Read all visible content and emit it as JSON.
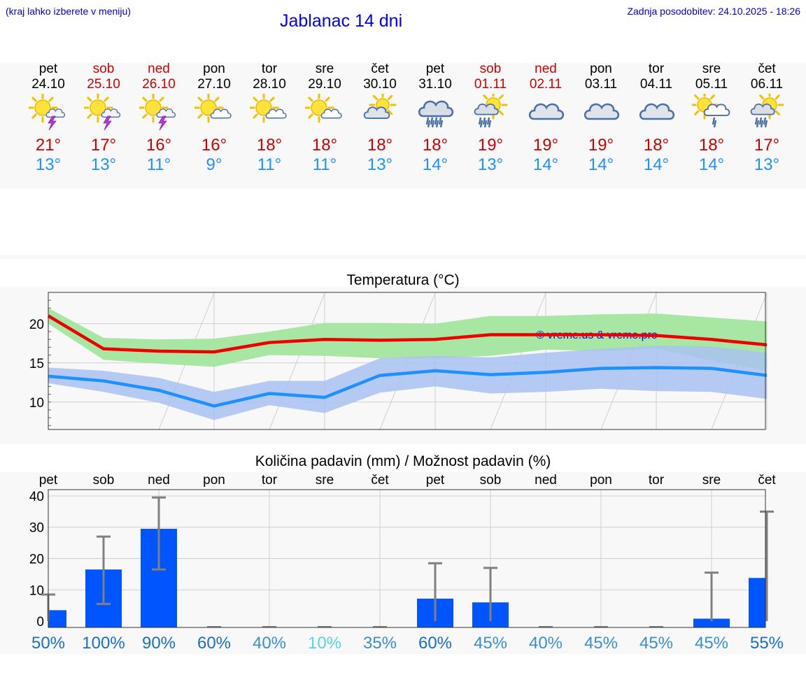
{
  "header": {
    "hint": "(kraj lahko izberete v meniju)",
    "title": "Jablanac 14 dni",
    "updated": "Zadnja posodobitev: 24.10.2025 - 18:26"
  },
  "days": [
    {
      "name": "pet",
      "date": "24.10",
      "weekend": false,
      "icon": "sun-storm",
      "max": "21°",
      "min": "13°"
    },
    {
      "name": "sob",
      "date": "25.10",
      "weekend": true,
      "icon": "sun-storm",
      "max": "17°",
      "min": "13°"
    },
    {
      "name": "ned",
      "date": "26.10",
      "weekend": true,
      "icon": "sun-storm",
      "max": "16°",
      "min": "11°"
    },
    {
      "name": "pon",
      "date": "27.10",
      "weekend": false,
      "icon": "sun-cloud",
      "max": "16°",
      "min": "9°"
    },
    {
      "name": "tor",
      "date": "28.10",
      "weekend": false,
      "icon": "sun-cloud",
      "max": "18°",
      "min": "11°"
    },
    {
      "name": "sre",
      "date": "29.10",
      "weekend": false,
      "icon": "sun-cloud",
      "max": "18°",
      "min": "11°"
    },
    {
      "name": "čet",
      "date": "30.10",
      "weekend": false,
      "icon": "cloud-sun",
      "max": "18°",
      "min": "13°"
    },
    {
      "name": "pet",
      "date": "31.10",
      "weekend": false,
      "icon": "cloud-rain",
      "max": "18°",
      "min": "14°"
    },
    {
      "name": "sob",
      "date": "01.11",
      "weekend": true,
      "icon": "sun-rain",
      "max": "19°",
      "min": "13°"
    },
    {
      "name": "ned",
      "date": "02.11",
      "weekend": true,
      "icon": "cloud",
      "max": "19°",
      "min": "14°"
    },
    {
      "name": "pon",
      "date": "03.11",
      "weekend": false,
      "icon": "cloud",
      "max": "19°",
      "min": "14°"
    },
    {
      "name": "tor",
      "date": "04.11",
      "weekend": false,
      "icon": "cloud",
      "max": "18°",
      "min": "14°"
    },
    {
      "name": "sre",
      "date": "05.11",
      "weekend": false,
      "icon": "sun-rain-light",
      "max": "18°",
      "min": "14°"
    },
    {
      "name": "čet",
      "date": "06.11",
      "weekend": false,
      "icon": "sun-rain",
      "max": "17°",
      "min": "13°"
    }
  ],
  "colors": {
    "max_line": "#ee0000",
    "min_line": "#1e90ff",
    "max_band": "#a8e6a3",
    "min_band": "#a9c2f2",
    "overlap_band": "#7fc9a8",
    "bar": "#0055ff",
    "error": "#808080",
    "weekend": "#cc0000"
  },
  "chart_data": [
    {
      "type": "line",
      "title": "Temperatura (°C)",
      "watermark": "© vreme.us & vreme.pro",
      "ylim": [
        6.5,
        24
      ],
      "yticks": [
        "10",
        "15",
        "20"
      ],
      "yticks_values": [
        10,
        15,
        20
      ],
      "x": [
        0,
        1,
        2,
        3,
        4,
        5,
        6,
        7,
        8,
        9,
        10,
        11,
        12,
        13
      ],
      "series": [
        {
          "name": "max",
          "values": [
            21,
            16.8,
            16.5,
            16.4,
            17.6,
            18.0,
            17.9,
            18.0,
            18.6,
            18.6,
            18.6,
            18.5,
            18.0,
            17.3
          ],
          "band_high": [
            22.0,
            18.2,
            18.0,
            18.1,
            19.0,
            20.1,
            20.1,
            20.0,
            21.0,
            21.0,
            21.2,
            21.3,
            20.8,
            20.3
          ],
          "band_low": [
            20.0,
            15.4,
            14.9,
            14.5,
            16.0,
            15.9,
            15.6,
            15.6,
            15.9,
            16.7,
            16.5,
            16.8,
            15.3,
            14.0
          ]
        },
        {
          "name": "min",
          "values": [
            13.3,
            12.7,
            11.5,
            9.5,
            11.1,
            10.6,
            13.4,
            14.0,
            13.5,
            13.8,
            14.3,
            14.4,
            14.3,
            13.4
          ],
          "band_high": [
            14.4,
            14.0,
            13.1,
            11.3,
            12.7,
            12.7,
            15.6,
            15.9,
            15.7,
            16.3,
            16.8,
            17.2,
            17.1,
            16.3
          ],
          "band_low": [
            12.4,
            11.3,
            9.9,
            7.7,
            9.6,
            8.6,
            11.2,
            12.0,
            11.1,
            11.3,
            11.7,
            11.4,
            11.3,
            10.4
          ]
        }
      ]
    },
    {
      "type": "bar",
      "title": "Količina padavin (mm) / Možnost padavin (%)",
      "categories": [
        "pet",
        "sob",
        "ned",
        "pon",
        "tor",
        "sre",
        "čet",
        "pet",
        "sob",
        "ned",
        "pon",
        "tor",
        "sre",
        "čet"
      ],
      "ylim": [
        -2,
        42
      ],
      "yticks": [
        "0",
        "10",
        "20",
        "30",
        "40"
      ],
      "yticks_values": [
        0,
        10,
        20,
        30,
        40
      ],
      "values": [
        3.5,
        16.5,
        29.5,
        0,
        0,
        0,
        0,
        7.2,
        6.0,
        0,
        0,
        0,
        0.8,
        13.8
      ],
      "err_high": [
        8.5,
        27,
        39.5,
        0,
        0,
        0,
        0,
        18.5,
        17,
        0,
        0,
        0,
        15.5,
        35
      ],
      "err_low": [
        0,
        5.5,
        16.5,
        0,
        0,
        0,
        0,
        0,
        0,
        0,
        0,
        0,
        0,
        0
      ],
      "probability": [
        "50%",
        "100%",
        "90%",
        "60%",
        "40%",
        "10%",
        "35%",
        "60%",
        "45%",
        "40%",
        "45%",
        "45%",
        "45%",
        "55%"
      ],
      "probability_colors": [
        "#1a6fbf",
        "#1a6fbf",
        "#1a6fbf",
        "#1a6fbf",
        "#3a8fd0",
        "#5ad2e8",
        "#3a8fd0",
        "#1a6fbf",
        "#3a8fd0",
        "#3a8fd0",
        "#3a8fd0",
        "#3a8fd0",
        "#3a8fd0",
        "#1a6fbf"
      ]
    }
  ]
}
